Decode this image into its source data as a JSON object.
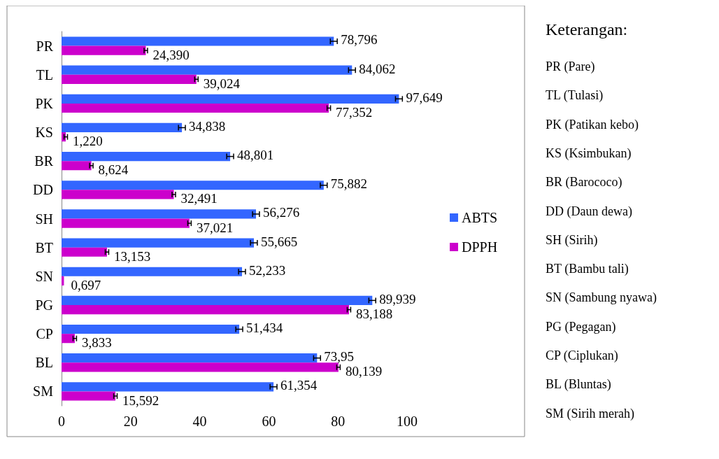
{
  "chart_data": {
    "type": "bar",
    "orientation": "horizontal",
    "categories": [
      "PR",
      "TL",
      "PK",
      "KS",
      "BR",
      "DD",
      "SH",
      "BT",
      "SN",
      "PG",
      "CP",
      "BL",
      "SM"
    ],
    "series": [
      {
        "name": "ABTS",
        "color": "#3366ff",
        "values": [
          78.796,
          84.062,
          97.649,
          34.838,
          48.801,
          75.882,
          56.276,
          55.665,
          52.233,
          89.939,
          51.434,
          73.95,
          61.354
        ],
        "errors": [
          1,
          1,
          1,
          1,
          1,
          1,
          1,
          1,
          1,
          1,
          1,
          1,
          1
        ],
        "value_labels": [
          "78,796",
          "84,062",
          "97,649",
          "34,838",
          "48,801",
          "75,882",
          "56,276",
          "55,665",
          "52,233",
          "89,939",
          "51,434",
          "73,95",
          "61,354"
        ]
      },
      {
        "name": "DPPH",
        "color": "#cc00cc",
        "values": [
          24.39,
          39.024,
          77.352,
          1.22,
          8.624,
          32.491,
          37.021,
          13.153,
          0.697,
          83.188,
          3.833,
          80.139,
          15.592
        ],
        "errors": [
          0.5,
          0.5,
          0.5,
          0.5,
          0.5,
          0.5,
          0.5,
          0.5,
          null,
          0.5,
          0.5,
          0.5,
          0.5
        ],
        "value_labels": [
          "24,390",
          "39,024",
          "77,352",
          "1,220",
          "8,624",
          "32,491",
          "37,021",
          "13,153",
          "0,697",
          "83,188",
          "3,833",
          "80,139",
          "15,592"
        ]
      }
    ],
    "xlim": [
      0,
      100
    ],
    "xticks": [
      0,
      20,
      40,
      60,
      80,
      100
    ],
    "grid": false,
    "legend": "right",
    "annotations": [
      "Keterangan:",
      "PR (Pare)",
      "TL (Tulasi)",
      "PK (Patikan kebo)",
      "KS (Ksimbukan)",
      "BR (Barococo)",
      "DD (Daun dewa)",
      "SH (Sirih)",
      "BT (Bambu tali)",
      "SN (Sambung nyawa)",
      "PG (Pegagan)",
      "CP (Ciplukan)",
      "BL (Bluntas)",
      "SM (Sirih merah)"
    ]
  }
}
